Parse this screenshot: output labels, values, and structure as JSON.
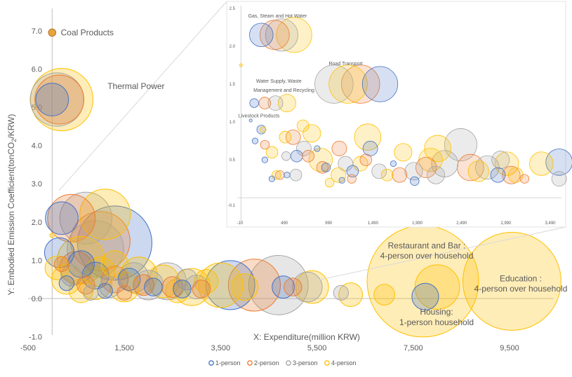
{
  "chart_data": {
    "type": "scatter",
    "subtype": "bubble",
    "xlabel": "X: Expenditure(million KRW)",
    "ylabel": "Y: Embodied Emission Coefficient(tonCO",
    "ylabel_sub": "2",
    "ylabel_end": "/KRW)",
    "xlim": [
      -500,
      10300
    ],
    "ylim": [
      -1.0,
      7.7
    ],
    "x_ticks": [
      "-500",
      "1,500",
      "3,500",
      "5,500",
      "7,500",
      "9,500"
    ],
    "x_tick_values": [
      -500,
      1500,
      3500,
      5500,
      7500,
      9500
    ],
    "y_ticks": [
      "-1.0",
      "0.0",
      "1.0",
      "2.0",
      "3.0",
      "4.0",
      "5.0",
      "6.0",
      "7.0"
    ],
    "y_tick_values": [
      -1,
      0,
      1,
      2,
      3,
      4,
      5,
      6,
      7
    ],
    "legend": [
      {
        "name": "1-person",
        "color": "#4472c4"
      },
      {
        "name": "2-person",
        "color": "#ed7d31"
      },
      {
        "name": "3-person",
        "color": "#a5a5a5"
      },
      {
        "name": "4-person",
        "color": "#ffc000"
      }
    ],
    "annotations": [
      {
        "text": "Coal Products",
        "x": 180,
        "y": 6.95
      },
      {
        "text": "Thermal  Power",
        "x": 1150,
        "y": 5.55
      },
      {
        "text": "Restaurant and Bar :",
        "x": 7300,
        "y": 1.38
      },
      {
        "text": "4-person over household",
        "x": 7300,
        "y": 1.12
      },
      {
        "text": "Education :",
        "x": 9700,
        "y": 0.52
      },
      {
        "text": "4-person over household",
        "x": 9700,
        "y": 0.26
      },
      {
        "text": "Housing:",
        "x": 7750,
        "y": -0.35
      },
      {
        "text": "1-person household",
        "x": 7750,
        "y": -0.62
      }
    ],
    "series": [
      {
        "name": "1-person",
        "points": [
          [
            0,
            5.2,
            0.22
          ],
          [
            200,
            2.1,
            0.22
          ],
          [
            1300,
            1.45,
            0.5
          ],
          [
            3700,
            0.35,
            0.33
          ],
          [
            7750,
            0.05,
            0.18
          ],
          [
            150,
            1.2,
            0.2
          ],
          [
            600,
            0.9,
            0.18
          ],
          [
            900,
            0.6,
            0.18
          ],
          [
            1600,
            0.5,
            0.15
          ],
          [
            2100,
            0.3,
            0.12
          ],
          [
            2700,
            0.25,
            0.12
          ],
          [
            300,
            0.4,
            0.1
          ],
          [
            1100,
            0.2,
            0.1
          ],
          [
            4800,
            0.3,
            0.15
          ]
        ]
      },
      {
        "name": "2-person",
        "points": [
          [
            0,
            6.95,
            0.05
          ],
          [
            150,
            5.2,
            0.33
          ],
          [
            400,
            2.1,
            0.32
          ],
          [
            1000,
            1.5,
            0.4
          ],
          [
            4200,
            0.35,
            0.35
          ],
          [
            500,
            0.8,
            0.22
          ],
          [
            1300,
            0.5,
            0.18
          ],
          [
            1900,
            0.35,
            0.14
          ],
          [
            2500,
            0.3,
            0.14
          ],
          [
            3100,
            0.25,
            0.12
          ],
          [
            700,
            0.35,
            0.12
          ],
          [
            200,
            0.9,
            0.1
          ],
          [
            1500,
            0.15,
            0.1
          ],
          [
            5000,
            0.3,
            0.12
          ]
        ]
      },
      {
        "name": "3-person",
        "points": [
          [
            100,
            5.2,
            0.36
          ],
          [
            700,
            2.1,
            0.35
          ],
          [
            900,
            1.3,
            0.38
          ],
          [
            4700,
            0.35,
            0.4
          ],
          [
            5300,
            0.3,
            0.2
          ],
          [
            2400,
            0.45,
            0.25
          ],
          [
            2000,
            0.35,
            0.2
          ],
          [
            1700,
            0.55,
            0.2
          ],
          [
            3000,
            0.3,
            0.16
          ],
          [
            400,
            0.6,
            0.14
          ],
          [
            1200,
            0.3,
            0.14
          ],
          [
            6000,
            0.15,
            0.1
          ],
          [
            2800,
            0.5,
            0.14
          ],
          [
            800,
            0.15,
            0.1
          ]
        ]
      },
      {
        "name": "4-person",
        "points": [
          [
            200,
            5.2,
            0.42
          ],
          [
            1100,
            2.2,
            0.34
          ],
          [
            600,
            1.0,
            0.32
          ],
          [
            7700,
            0.45,
            0.75
          ],
          [
            9550,
            0.45,
            0.66
          ],
          [
            8000,
            0.3,
            0.3
          ],
          [
            3500,
            0.35,
            0.3
          ],
          [
            2900,
            0.3,
            0.25
          ],
          [
            5400,
            0.3,
            0.22
          ],
          [
            6200,
            0.1,
            0.16
          ],
          [
            6900,
            0.1,
            0.14
          ],
          [
            1800,
            0.6,
            0.25
          ],
          [
            2300,
            0.45,
            0.22
          ],
          [
            300,
            0.5,
            0.2
          ],
          [
            900,
            0.4,
            0.22
          ],
          [
            1500,
            0.3,
            0.2
          ],
          [
            4000,
            0.3,
            0.18
          ],
          [
            100,
            0.8,
            0.16
          ],
          [
            1300,
            0.9,
            0.18
          ],
          [
            2600,
            0.2,
            0.16
          ],
          [
            3200,
            0.45,
            0.16
          ],
          [
            600,
            0.2,
            0.16
          ],
          [
            1000,
            0.7,
            0.2
          ],
          [
            0,
            1.65,
            0.03
          ]
        ]
      }
    ],
    "inset": {
      "x_ticks": [
        "-10",
        "490",
        "990",
        "1,490",
        "1,990",
        "2,490",
        "2,990",
        "3,490"
      ],
      "x_tick_values": [
        -10,
        490,
        990,
        1490,
        1990,
        2490,
        2990,
        3490
      ],
      "y_ticks": [
        "-0.1",
        "0.5",
        "1.0",
        "1.5",
        "2.0",
        "2.5"
      ],
      "y_tick_values": [
        -0.1,
        0.5,
        1.0,
        1.5,
        2.0,
        2.5
      ],
      "xlim": [
        -10,
        3800
      ],
      "ylim": [
        -0.1,
        2.55
      ],
      "annotations": [
        {
          "text": "Gas, Steam and Hot Water",
          "x": 240,
          "y": 2.38
        },
        {
          "text": "Road Transport",
          "x": 1150,
          "y": 1.75
        },
        {
          "text": "Water Supply, Waste",
          "x": 330,
          "y": 1.52
        },
        {
          "text": "Management and Recycling",
          "x": 300,
          "y": 1.4
        },
        {
          "text": "Livestock Products",
          "x": 130,
          "y": 1.06
        }
      ],
      "series": [
        {
          "name": "1-person",
          "points": [
            [
              230,
              2.15,
              0.08
            ],
            [
              1570,
              1.5,
              0.12
            ],
            [
              150,
              1.25,
              0.03
            ],
            [
              3590,
              0.47,
              0.09
            ],
            [
              1460,
              0.65,
              0.05
            ],
            [
              230,
              0.9,
              0.03
            ],
            [
              630,
              0.55,
              0.04
            ],
            [
              960,
              0.4,
              0.03
            ],
            [
              1260,
              0.35,
              0.04
            ],
            [
              1960,
              0.22,
              0.03
            ],
            [
              2900,
              0.3,
              0.05
            ],
            [
              350,
              0.25,
              0.02
            ],
            [
              110,
              1.02,
              0.01
            ],
            [
              160,
              0.75,
              0.02
            ],
            [
              520,
              0.3,
              0.02
            ],
            [
              1140,
              0.23,
              0.02
            ],
            [
              270,
              0.5,
              0.02
            ],
            [
              860,
              0.65,
              0.02
            ],
            [
              1720,
              0.45,
              0.02
            ]
          ]
        },
        {
          "name": "2-person",
          "points": [
            [
              380,
              2.15,
              0.1
            ],
            [
              1350,
              1.5,
              0.13
            ],
            [
              270,
              1.25,
              0.04
            ],
            [
              2590,
              0.4,
              0.09
            ],
            [
              2090,
              0.4,
              0.07
            ],
            [
              590,
              0.8,
              0.05
            ],
            [
              1110,
              0.65,
              0.05
            ],
            [
              1410,
              0.5,
              0.04
            ],
            [
              1790,
              0.3,
              0.05
            ],
            [
              3050,
              0.3,
              0.06
            ],
            [
              920,
              0.4,
              0.04
            ],
            [
              270,
              0.7,
              0.03
            ],
            [
              440,
              0.3,
              0.03
            ],
            [
              760,
              0.55,
              0.04
            ],
            [
              1250,
              0.25,
              0.03
            ],
            [
              3200,
              0.25,
              0.03
            ]
          ]
        },
        {
          "name": "3-person",
          "points": [
            [
              460,
              2.15,
              0.11
            ],
            [
              1050,
              1.5,
              0.13
            ],
            [
              390,
              1.25,
              0.05
            ],
            [
              2480,
              0.7,
              0.11
            ],
            [
              3590,
              0.25,
              0.05
            ],
            [
              2300,
              0.45,
              0.09
            ],
            [
              2780,
              0.4,
              0.08
            ],
            [
              710,
              0.65,
              0.05
            ],
            [
              1950,
              0.35,
              0.06
            ],
            [
              1180,
              0.45,
              0.05
            ],
            [
              2200,
              0.3,
              0.06
            ],
            [
              620,
              0.3,
              0.04
            ],
            [
              1560,
              0.35,
              0.05
            ],
            [
              510,
              0.55,
              0.03
            ],
            [
              2930,
              0.5,
              0.06
            ]
          ]
        },
        {
          "name": "4-person",
          "points": [
            [
              600,
              2.15,
              0.12
            ],
            [
              1210,
              1.5,
              0.13
            ],
            [
              520,
              1.25,
              0.06
            ],
            [
              1430,
              0.8,
              0.09
            ],
            [
              2220,
              0.65,
              0.09
            ],
            [
              2140,
              0.5,
              0.08
            ],
            [
              3390,
              0.45,
              0.08
            ],
            [
              2680,
              0.35,
              0.07
            ],
            [
              3000,
              0.45,
              0.08
            ],
            [
              800,
              0.85,
              0.06
            ],
            [
              900,
              0.5,
              0.08
            ],
            [
              1100,
              0.3,
              0.05
            ],
            [
              700,
              0.95,
              0.04
            ],
            [
              500,
              0.8,
              0.04
            ],
            [
              350,
              0.6,
              0.04
            ],
            [
              1830,
              0.6,
              0.06
            ],
            [
              1650,
              0.3,
              0.04
            ],
            [
              400,
              0.3,
              0.03
            ],
            [
              1000,
              0.2,
              0.03
            ],
            [
              3100,
              0.3,
              0.05
            ],
            [
              0,
              1.75,
              0.01
            ],
            [
              1350,
              0.45,
              0.05
            ],
            [
              250,
              0.9,
              0.02
            ]
          ]
        }
      ]
    }
  }
}
